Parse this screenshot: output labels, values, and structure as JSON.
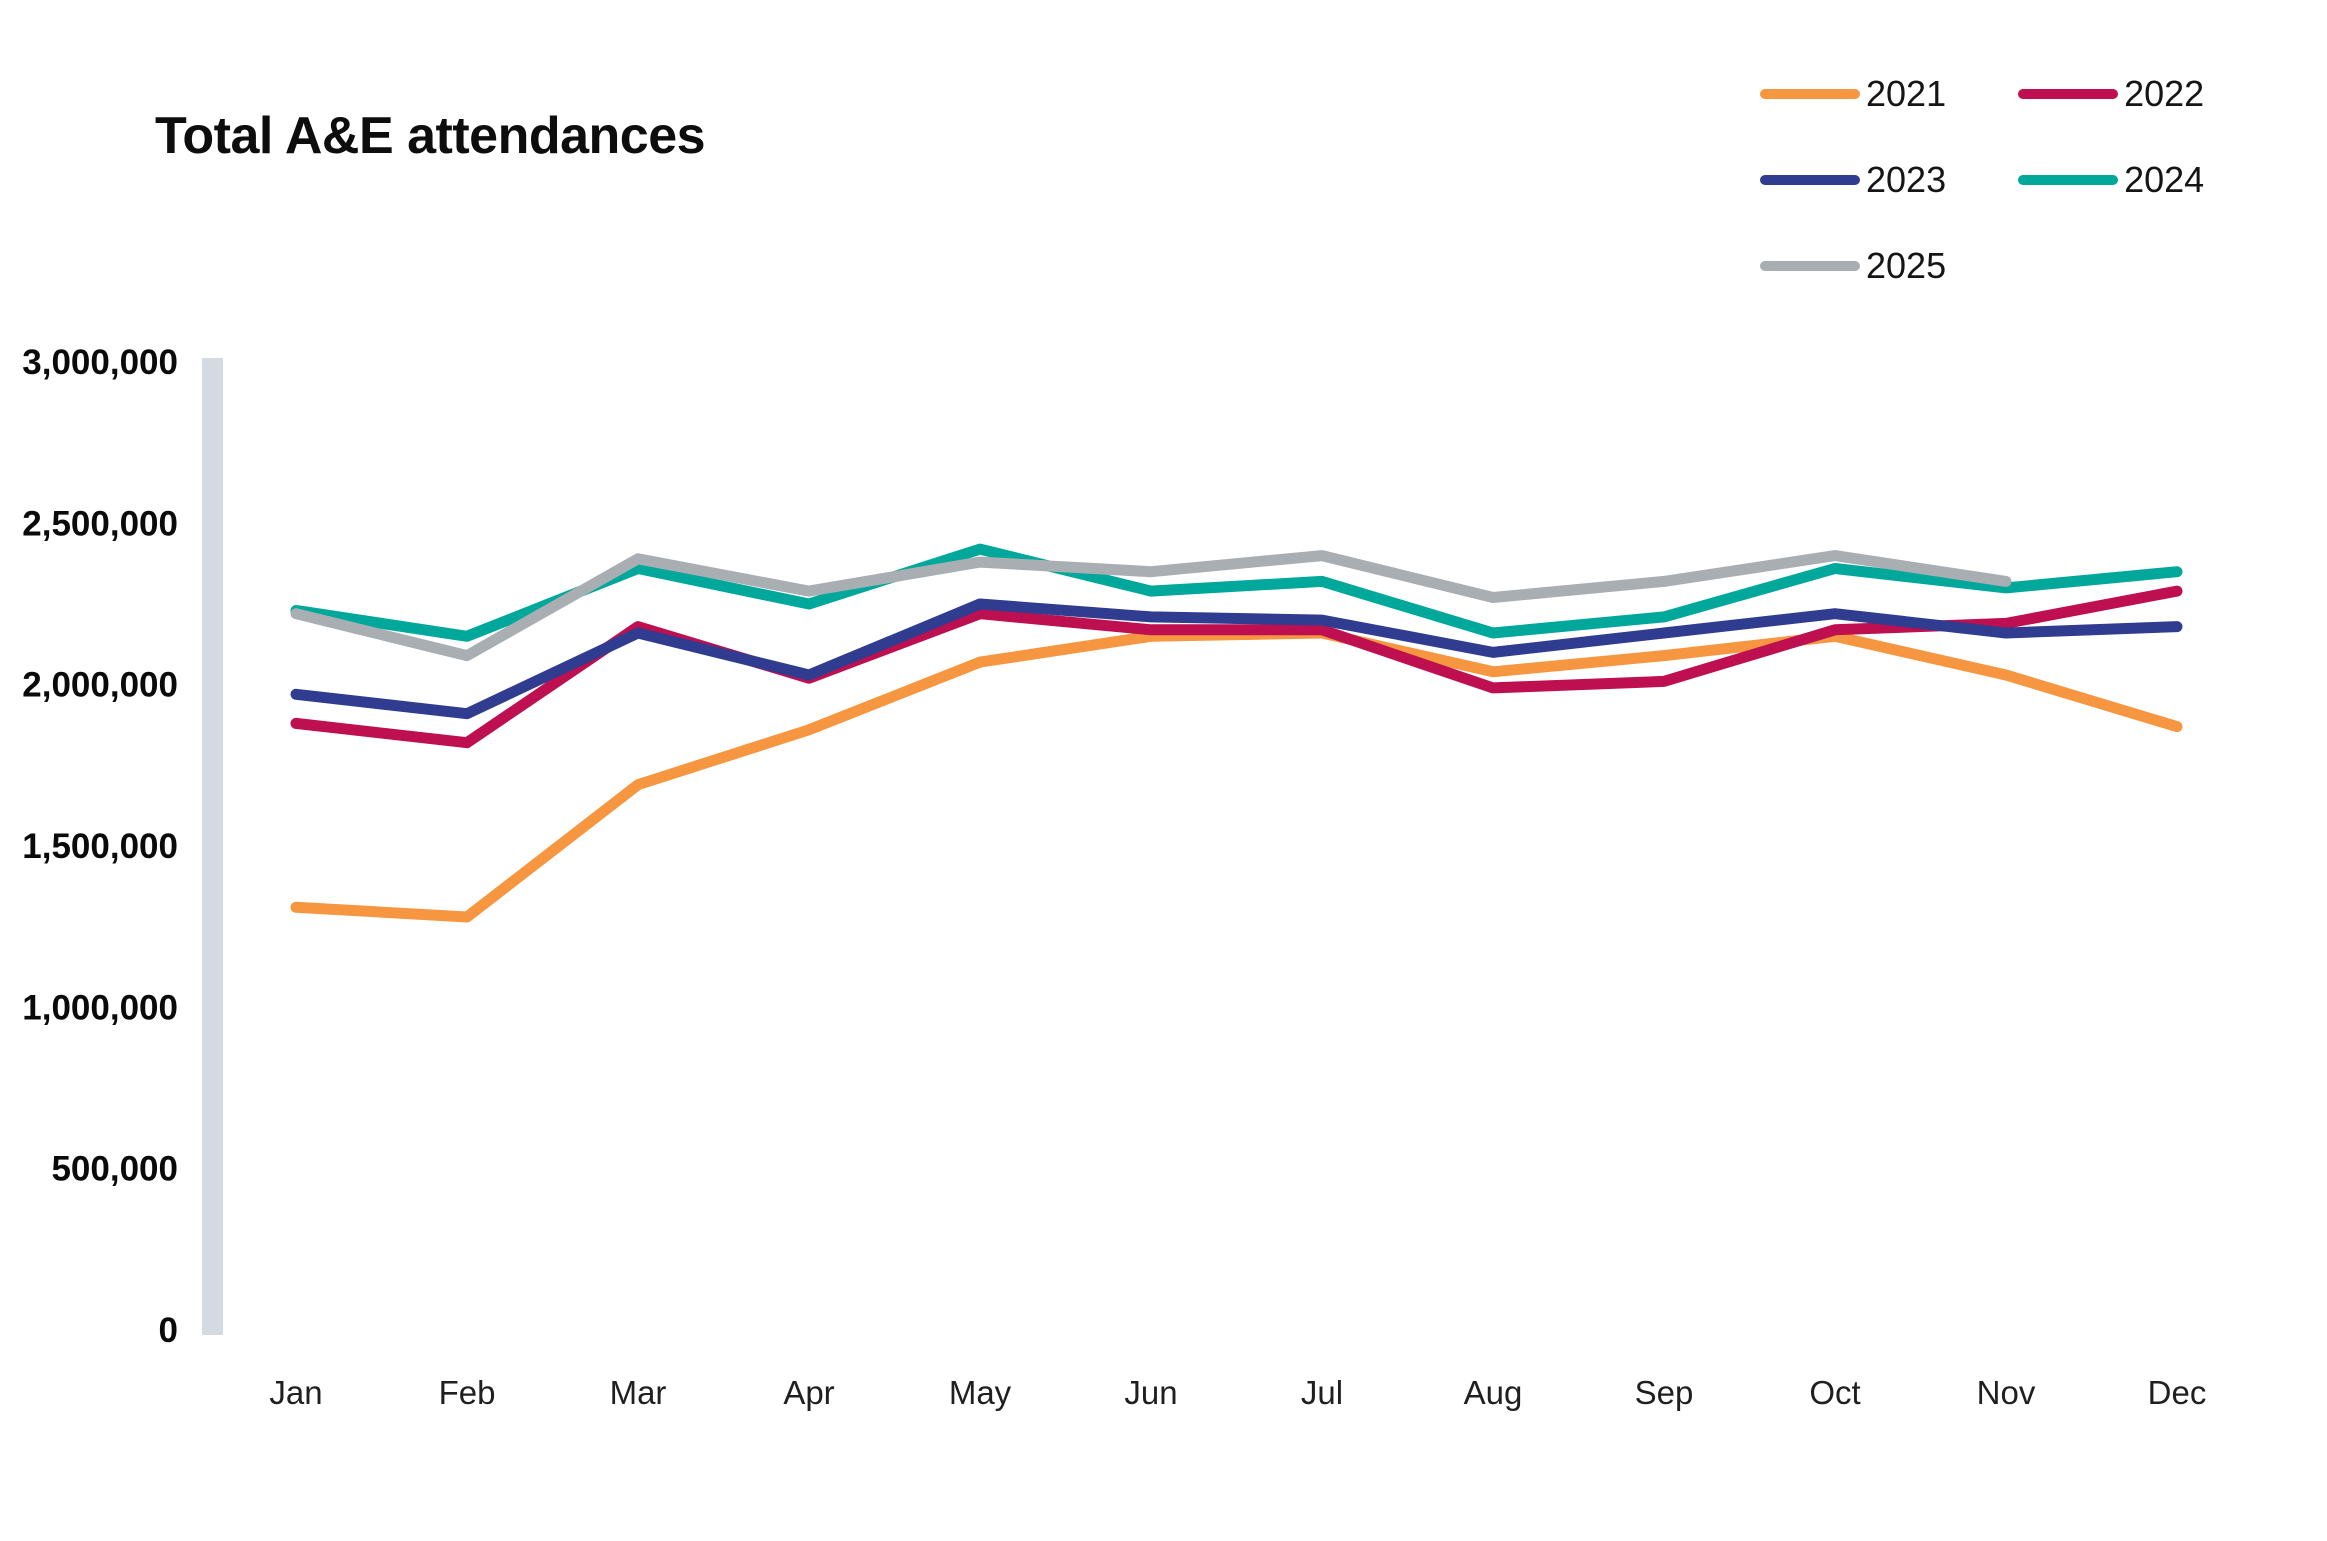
{
  "title": "Total A&E attendances",
  "chart_data": {
    "type": "line",
    "title": "Total A&E attendances",
    "categories": [
      "Jan",
      "Feb",
      "Mar",
      "Apr",
      "May",
      "Jun",
      "Jul",
      "Aug",
      "Sep",
      "Oct",
      "Nov",
      "Dec"
    ],
    "series": [
      {
        "name": "2021",
        "color": "#F79640",
        "values": [
          1310000,
          1280000,
          1690000,
          1860000,
          2070000,
          2150000,
          2160000,
          2040000,
          2090000,
          2150000,
          2030000,
          1870000
        ]
      },
      {
        "name": "2022",
        "color": "#BE0F50",
        "values": [
          1880000,
          1820000,
          2180000,
          2020000,
          2220000,
          2170000,
          2170000,
          1990000,
          2010000,
          2170000,
          2190000,
          2290000
        ]
      },
      {
        "name": "2023",
        "color": "#2F3C8F",
        "values": [
          1970000,
          1910000,
          2160000,
          2030000,
          2250000,
          2210000,
          2200000,
          2100000,
          2160000,
          2220000,
          2160000,
          2180000
        ]
      },
      {
        "name": "2024",
        "color": "#00A79B",
        "values": [
          2230000,
          2150000,
          2360000,
          2250000,
          2420000,
          2290000,
          2320000,
          2160000,
          2210000,
          2360000,
          2300000,
          2350000
        ]
      },
      {
        "name": "2025",
        "color": "#A9AEB3",
        "values": [
          2220000,
          2090000,
          2390000,
          2290000,
          2380000,
          2350000,
          2400000,
          2270000,
          2320000,
          2400000,
          2320000,
          null
        ]
      }
    ],
    "ylim": [
      0,
      3000000
    ],
    "ytick_step": 500000,
    "ytick_labels": [
      "0",
      "500,000",
      "1,000,000",
      "1,500,000",
      "2,000,000",
      "2,500,000",
      "3,000,000"
    ],
    "xlabel": "",
    "ylabel": "",
    "grid": false,
    "legend_position": "top-right",
    "axis_bar_color": "#D4DAE2"
  }
}
